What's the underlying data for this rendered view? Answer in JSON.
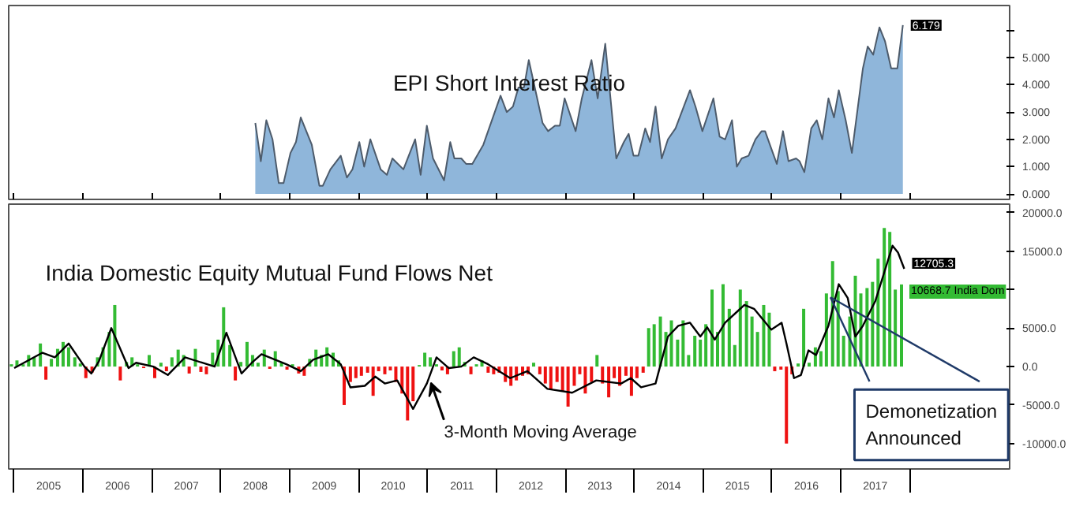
{
  "chart_data": [
    {
      "type": "area",
      "title": "EPI Short Interest Ratio",
      "xlim": [
        2004.92,
        2019.45
      ],
      "ylim": [
        -0.2,
        6.9
      ],
      "xticks": [
        {
          "value": 2005,
          "label": null
        },
        {
          "value": 2006,
          "label": null
        },
        {
          "value": 2007,
          "label": null
        },
        {
          "value": 2008,
          "label": null
        },
        {
          "value": 2009,
          "label": null
        },
        {
          "value": 2010,
          "label": null
        },
        {
          "value": 2011,
          "label": null
        },
        {
          "value": 2012,
          "label": null
        },
        {
          "value": 2013,
          "label": null
        },
        {
          "value": 2014,
          "label": null
        },
        {
          "value": 2015,
          "label": null
        },
        {
          "value": 2016,
          "label": null
        },
        {
          "value": 2017,
          "label": null
        },
        {
          "value": 2018,
          "label": null
        }
      ],
      "yticks": [
        {
          "value": 0,
          "label": "0.000"
        },
        {
          "value": 1,
          "label": "1.000"
        },
        {
          "value": 2,
          "label": "2.000"
        },
        {
          "value": 3,
          "label": "3.000"
        },
        {
          "value": 4,
          "label": "4.000"
        },
        {
          "value": 5,
          "label": "5.000"
        },
        {
          "value": 6,
          "label": null
        }
      ],
      "tick_labels": "y",
      "series": [
        {
          "color": "#8fb6da",
          "x": [
            2008.5,
            2008.58,
            2008.66,
            2008.75,
            2008.84,
            2008.91,
            2009.01,
            2009.09,
            2009.16,
            2009.32,
            2009.43,
            2009.48,
            2009.59,
            2009.74,
            2009.83,
            2009.91,
            2010.01,
            2010.08,
            2010.17,
            2010.32,
            2010.41,
            2010.49,
            2010.65,
            2010.82,
            2010.9,
            2010.99,
            2011.08,
            2011.24,
            2011.33,
            2011.39,
            2011.49,
            2011.56,
            2011.65,
            2011.81,
            2012.06,
            2012.15,
            2012.24,
            2012.32,
            2012.4,
            2012.47,
            2012.67,
            2012.75,
            2012.85,
            2012.92,
            2012.99,
            2013.15,
            2013.24,
            2013.38,
            2013.47,
            2013.58,
            2013.74,
            2013.85,
            2013.92,
            2013.99,
            2014.06,
            2014.16,
            2014.23,
            2014.31,
            2014.4,
            2014.49,
            2014.6,
            2014.81,
            2014.89,
            2014.99,
            2015.15,
            2015.24,
            2015.32,
            2015.42,
            2015.49,
            2015.56,
            2015.66,
            2015.76,
            2015.85,
            2015.9,
            2015.97,
            2016.07,
            2016.16,
            2016.24,
            2016.35,
            2016.4,
            2016.47,
            2016.57,
            2016.65,
            2016.73,
            2016.82,
            2016.9,
            2016.97,
            2017.07,
            2017.16,
            2017.32,
            2017.39,
            2017.47,
            2017.56,
            2017.64,
            2017.73,
            2017.82,
            2017.9
          ],
          "values": [
            2.6,
            1.2,
            2.7,
            2.0,
            0.4,
            0.4,
            1.5,
            1.9,
            2.8,
            1.8,
            0.3,
            0.3,
            0.9,
            1.4,
            0.6,
            0.9,
            1.9,
            1.0,
            2.0,
            0.9,
            0.7,
            1.3,
            0.9,
            2.0,
            0.7,
            2.5,
            1.3,
            0.5,
            1.9,
            1.3,
            1.3,
            1.1,
            1.1,
            1.8,
            3.6,
            3.0,
            3.2,
            3.9,
            3.9,
            4.9,
            2.6,
            2.3,
            2.5,
            2.5,
            3.5,
            2.3,
            3.5,
            4.9,
            3.5,
            5.5,
            1.3,
            1.9,
            2.2,
            1.4,
            1.4,
            2.4,
            1.9,
            3.2,
            1.3,
            2.0,
            2.4,
            3.8,
            3.2,
            2.3,
            3.5,
            2.1,
            2.0,
            2.7,
            1.0,
            1.3,
            1.4,
            2.0,
            2.3,
            2.3,
            1.8,
            1.1,
            2.3,
            1.2,
            1.3,
            1.2,
            0.8,
            2.4,
            2.7,
            2.0,
            3.5,
            2.8,
            3.8,
            2.7,
            1.5,
            4.6,
            5.4,
            5.1,
            6.1,
            5.6,
            4.6,
            4.6,
            6.179
          ],
          "value_labels": [
            null,
            null,
            null,
            null,
            null,
            null,
            null,
            null,
            null,
            null,
            null,
            null,
            null,
            null,
            null,
            null,
            null,
            null,
            null,
            null,
            null,
            null,
            null,
            null,
            null,
            null,
            null,
            null,
            null,
            null,
            null,
            null,
            null,
            null,
            null,
            null,
            null,
            null,
            null,
            null,
            null,
            null,
            null,
            null,
            null,
            null,
            null,
            null,
            null,
            null,
            null,
            null,
            null,
            null,
            null,
            null,
            null,
            null,
            null,
            null,
            null,
            null,
            null,
            null,
            null,
            null,
            null,
            null,
            null,
            null,
            null,
            null,
            null,
            null,
            null,
            null,
            null,
            null,
            null,
            null,
            null,
            null,
            null,
            null,
            null,
            null,
            null,
            null,
            null,
            null,
            null,
            null,
            null,
            null,
            null,
            null,
            "6.179"
          ]
        }
      ]
    },
    {
      "type": "bar",
      "title": "India Domestic Equity Mutual Fund Flows Net",
      "xlim": [
        2004.92,
        2019.45
      ],
      "ylim": [
        -13300,
        21100
      ],
      "yticks": [
        {
          "value": -10000,
          "label": "-10000.0"
        },
        {
          "value": -5000,
          "label": "-5000.0"
        },
        {
          "value": 0,
          "label": "0.0"
        },
        {
          "value": 5000,
          "label": "5000.0"
        },
        {
          "value": 10000,
          "label": null
        },
        {
          "value": 15000,
          "label": "15000.0"
        },
        {
          "value": 20000,
          "label": "20000.0"
        }
      ],
      "xticks": [
        {
          "value": 2005,
          "label": null
        },
        {
          "value": 2005.5,
          "label": "2005"
        },
        {
          "value": 2006,
          "label": null
        },
        {
          "value": 2006.5,
          "label": "2006"
        },
        {
          "value": 2007,
          "label": null
        },
        {
          "value": 2007.5,
          "label": "2007"
        },
        {
          "value": 2008,
          "label": null
        },
        {
          "value": 2008.5,
          "label": "2008"
        },
        {
          "value": 2009,
          "label": null
        },
        {
          "value": 2009.5,
          "label": "2009"
        },
        {
          "value": 2010,
          "label": null
        },
        {
          "value": 2010.5,
          "label": "2010"
        },
        {
          "value": 2011,
          "label": null
        },
        {
          "value": 2011.5,
          "label": "2011"
        },
        {
          "value": 2012,
          "label": null
        },
        {
          "value": 2012.5,
          "label": "2012"
        },
        {
          "value": 2013,
          "label": null
        },
        {
          "value": 2013.5,
          "label": "2013"
        },
        {
          "value": 2014,
          "label": null
        },
        {
          "value": 2014.5,
          "label": "2014"
        },
        {
          "value": 2015,
          "label": null
        },
        {
          "value": 2015.5,
          "label": "2015"
        },
        {
          "value": 2016,
          "label": null
        },
        {
          "value": 2016.5,
          "label": "2016"
        },
        {
          "value": 2017,
          "label": null
        },
        {
          "value": 2017.5,
          "label": "2017"
        },
        {
          "value": 2018,
          "label": null
        }
      ],
      "annotations": [
        {
          "text": "3-Month Moving Average",
          "x": 2011.05,
          "y": -2100
        },
        {
          "text": "Demonetization Announced",
          "x": 2016.85,
          "y": 9000
        }
      ],
      "series": [
        {
          "type": "bar",
          "name": "India Dom",
          "x": [
            2004.96,
            2005.04,
            2005.13,
            2005.21,
            2005.29,
            2005.38,
            2005.46,
            2005.54,
            2005.63,
            2005.71,
            2005.79,
            2005.88,
            2005.96,
            2006.04,
            2006.13,
            2006.21,
            2006.29,
            2006.38,
            2006.46,
            2006.54,
            2006.63,
            2006.71,
            2006.79,
            2006.88,
            2006.96,
            2007.04,
            2007.13,
            2007.21,
            2007.29,
            2007.38,
            2007.46,
            2007.54,
            2007.63,
            2007.71,
            2007.79,
            2007.88,
            2007.96,
            2008.04,
            2008.13,
            2008.21,
            2008.29,
            2008.38,
            2008.46,
            2008.54,
            2008.63,
            2008.71,
            2008.79,
            2008.88,
            2008.96,
            2009.04,
            2009.13,
            2009.21,
            2009.29,
            2009.38,
            2009.46,
            2009.54,
            2009.63,
            2009.71,
            2009.79,
            2009.88,
            2009.96,
            2010.04,
            2010.13,
            2010.21,
            2010.29,
            2010.38,
            2010.46,
            2010.54,
            2010.63,
            2010.71,
            2010.79,
            2010.88,
            2010.96,
            2011.04,
            2011.13,
            2011.21,
            2011.29,
            2011.38,
            2011.46,
            2011.54,
            2011.63,
            2011.71,
            2011.79,
            2011.88,
            2011.96,
            2012.04,
            2012.13,
            2012.21,
            2012.29,
            2012.38,
            2012.46,
            2012.54,
            2012.63,
            2012.71,
            2012.79,
            2012.88,
            2012.96,
            2013.04,
            2013.13,
            2013.21,
            2013.29,
            2013.38,
            2013.46,
            2013.54,
            2013.63,
            2013.71,
            2013.79,
            2013.88,
            2013.96,
            2014.04,
            2014.13,
            2014.21,
            2014.29,
            2014.38,
            2014.46,
            2014.54,
            2014.63,
            2014.71,
            2014.79,
            2014.88,
            2014.96,
            2015.04,
            2015.13,
            2015.21,
            2015.29,
            2015.38,
            2015.46,
            2015.54,
            2015.63,
            2015.71,
            2015.79,
            2015.88,
            2015.96,
            2016.04,
            2016.13,
            2016.21,
            2016.29,
            2016.38,
            2016.46,
            2016.54,
            2016.63,
            2016.71,
            2016.79,
            2016.88,
            2016.96,
            2017.04,
            2017.13,
            2017.21,
            2017.29,
            2017.38,
            2017.46,
            2017.54,
            2017.63,
            2017.71,
            2017.79,
            2017.88
          ],
          "values": [
            300,
            800,
            300,
            1500,
            1200,
            3000,
            -1700,
            1000,
            2300,
            3200,
            2500,
            1200,
            400,
            -1500,
            -800,
            1200,
            2500,
            4500,
            8000,
            -1800,
            600,
            1200,
            300,
            -200,
            1500,
            -1500,
            500,
            -600,
            1200,
            2200,
            1500,
            -900,
            2300,
            -700,
            -1000,
            1800,
            3500,
            7700,
            2800,
            -1800,
            600,
            3200,
            1500,
            500,
            2200,
            -300,
            2000,
            500,
            -400,
            300,
            -900,
            -1200,
            1000,
            2200,
            1500,
            2500,
            1800,
            800,
            -5000,
            -2000,
            -1500,
            -1200,
            -800,
            -3800,
            -600,
            -1000,
            -500,
            -2000,
            -3500,
            -7000,
            -4500,
            200,
            1800,
            1200,
            300,
            -500,
            -1000,
            2000,
            2500,
            600,
            -1000,
            300,
            800,
            -800,
            -1000,
            -800,
            -2000,
            -2500,
            -1800,
            -1200,
            -1000,
            500,
            -1000,
            -2200,
            -3000,
            -2000,
            -3200,
            -5200,
            -2500,
            -1000,
            -3500,
            -2000,
            1500,
            -2200,
            -4000,
            -1500,
            -2500,
            -1200,
            -3800,
            -1500,
            -800,
            5000,
            5500,
            6500,
            4500,
            6000,
            3500,
            6000,
            1500,
            4000,
            3500,
            5500,
            10000,
            4500,
            10700,
            7500,
            2800,
            10000,
            8500,
            6500,
            4500,
            8000,
            7000,
            -600,
            -400,
            -10000,
            -1000,
            400,
            7500,
            500,
            2500,
            2000,
            9500,
            13700,
            9800,
            4000,
            6500,
            11800,
            9500,
            10200,
            11000,
            14000,
            18000,
            17500,
            10000,
            10668.7
          ],
          "colors": [
            "#33bb33",
            "#33bb33",
            "#33bb33",
            "#33bb33",
            "#33bb33",
            "#33bb33",
            "#ee1111",
            "#33bb33",
            "#33bb33",
            "#33bb33",
            "#33bb33",
            "#33bb33",
            "#33bb33",
            "#ee1111",
            "#ee1111",
            "#33bb33",
            "#33bb33",
            "#33bb33",
            "#33bb33",
            "#ee1111",
            "#33bb33",
            "#33bb33",
            "#33bb33",
            "#ee1111",
            "#33bb33",
            "#ee1111",
            "#33bb33",
            "#ee1111",
            "#33bb33",
            "#33bb33",
            "#33bb33",
            "#ee1111",
            "#33bb33",
            "#ee1111",
            "#ee1111",
            "#33bb33",
            "#33bb33",
            "#33bb33",
            "#33bb33",
            "#ee1111",
            "#33bb33",
            "#33bb33",
            "#33bb33",
            "#33bb33",
            "#33bb33",
            "#ee1111",
            "#33bb33",
            "#33bb33",
            "#ee1111",
            "#33bb33",
            "#ee1111",
            "#ee1111",
            "#33bb33",
            "#33bb33",
            "#33bb33",
            "#33bb33",
            "#33bb33",
            "#33bb33",
            "#ee1111",
            "#ee1111",
            "#ee1111",
            "#ee1111",
            "#ee1111",
            "#ee1111",
            "#ee1111",
            "#ee1111",
            "#ee1111",
            "#ee1111",
            "#ee1111",
            "#ee1111",
            "#ee1111",
            "#33bb33",
            "#33bb33",
            "#33bb33",
            "#33bb33",
            "#ee1111",
            "#ee1111",
            "#33bb33",
            "#33bb33",
            "#33bb33",
            "#ee1111",
            "#33bb33",
            "#33bb33",
            "#ee1111",
            "#ee1111",
            "#ee1111",
            "#ee1111",
            "#ee1111",
            "#ee1111",
            "#ee1111",
            "#ee1111",
            "#33bb33",
            "#ee1111",
            "#ee1111",
            "#ee1111",
            "#ee1111",
            "#ee1111",
            "#ee1111",
            "#ee1111",
            "#ee1111",
            "#ee1111",
            "#ee1111",
            "#33bb33",
            "#ee1111",
            "#ee1111",
            "#ee1111",
            "#ee1111",
            "#ee1111",
            "#ee1111",
            "#ee1111",
            "#ee1111",
            "#33bb33",
            "#33bb33",
            "#33bb33",
            "#33bb33",
            "#33bb33",
            "#33bb33",
            "#33bb33",
            "#33bb33",
            "#33bb33",
            "#33bb33",
            "#33bb33",
            "#33bb33",
            "#33bb33",
            "#33bb33",
            "#33bb33",
            "#33bb33",
            "#33bb33",
            "#33bb33",
            "#33bb33",
            "#33bb33",
            "#33bb33",
            "#33bb33",
            "#ee1111",
            "#ee1111",
            "#ee1111",
            "#ee1111",
            "#33bb33",
            "#33bb33",
            "#33bb33",
            "#33bb33",
            "#33bb33",
            "#33bb33",
            "#33bb33",
            "#33bb33",
            "#33bb33",
            "#33bb33",
            "#33bb33",
            "#33bb33",
            "#33bb33",
            "#33bb33",
            "#33bb33",
            "#33bb33",
            "#33bb33",
            "#33bb33",
            "#33bb33"
          ],
          "value_labels": [
            null,
            null,
            null,
            null,
            null,
            null,
            null,
            null,
            null,
            null,
            null,
            null,
            null,
            null,
            null,
            null,
            null,
            null,
            null,
            null,
            null,
            null,
            null,
            null,
            null,
            null,
            null,
            null,
            null,
            null,
            null,
            null,
            null,
            null,
            null,
            null,
            null,
            null,
            null,
            null,
            null,
            null,
            null,
            null,
            null,
            null,
            null,
            null,
            null,
            null,
            null,
            null,
            null,
            null,
            null,
            null,
            null,
            null,
            null,
            null,
            null,
            null,
            null,
            null,
            null,
            null,
            null,
            null,
            null,
            null,
            null,
            null,
            null,
            null,
            null,
            null,
            null,
            null,
            null,
            null,
            null,
            null,
            null,
            null,
            null,
            null,
            null,
            null,
            null,
            null,
            null,
            null,
            null,
            null,
            null,
            null,
            null,
            null,
            null,
            null,
            null,
            null,
            null,
            null,
            null,
            null,
            null,
            null,
            null,
            null,
            null,
            null,
            null,
            null,
            null,
            null,
            null,
            null,
            null,
            null,
            null,
            null,
            null,
            null,
            null,
            null,
            null,
            null,
            null,
            null,
            null,
            null,
            null,
            null,
            null,
            null,
            null,
            null,
            null,
            null,
            null,
            null,
            null,
            null,
            null,
            null,
            null,
            null,
            null,
            null,
            null,
            null,
            null,
            null,
            null,
            "10668.7"
          ]
        },
        {
          "type": "line",
          "color": "#000000",
          "x": [
            2005.0,
            2005.41,
            2005.59,
            2005.79,
            2006.02,
            2006.12,
            2006.23,
            2006.41,
            2006.66,
            2006.77,
            2007.02,
            2007.23,
            2007.48,
            2007.73,
            2007.91,
            2008.08,
            2008.3,
            2008.45,
            2008.59,
            2008.95,
            2009.16,
            2009.34,
            2009.56,
            2009.74,
            2009.88,
            2010.09,
            2010.24,
            2010.38,
            2010.56,
            2010.79,
            2010.99,
            2011.13,
            2011.31,
            2011.49,
            2011.67,
            2011.88,
            2012.2,
            2012.45,
            2012.74,
            2013.1,
            2013.45,
            2013.81,
            2013.95,
            2014.1,
            2014.31,
            2014.49,
            2014.64,
            2014.81,
            2014.96,
            2015.06,
            2015.17,
            2015.32,
            2015.49,
            2015.6,
            2015.74,
            2015.99,
            2016.14,
            2016.21,
            2016.32,
            2016.42,
            2016.53,
            2016.64,
            2016.82,
            2016.97,
            2017.1,
            2017.21,
            2017.32,
            2017.5,
            2017.75,
            2017.83,
            2017.92
          ],
          "values": [
            -200,
            1800,
            1200,
            3000,
            0,
            -900,
            700,
            5000,
            -200,
            500,
            0,
            -1100,
            1200,
            500,
            0,
            4400,
            -900,
            500,
            1600,
            300,
            -600,
            900,
            1600,
            300,
            -2700,
            -2500,
            -1300,
            -2200,
            -1800,
            -5500,
            -2200,
            1200,
            -200,
            0,
            1200,
            300,
            -1500,
            -600,
            -2900,
            -3400,
            -1800,
            -2200,
            -1500,
            -2700,
            -2200,
            3900,
            5300,
            5700,
            3900,
            5100,
            3500,
            5700,
            7100,
            8000,
            7500,
            4800,
            5700,
            3000,
            -1500,
            -1100,
            2100,
            1500,
            5300,
            10700,
            8900,
            3900,
            5300,
            8500,
            15700,
            14800,
            12705.3
          ],
          "value_labels": [
            null,
            null,
            null,
            null,
            null,
            null,
            null,
            null,
            null,
            null,
            null,
            null,
            null,
            null,
            null,
            null,
            null,
            null,
            null,
            null,
            null,
            null,
            null,
            null,
            null,
            null,
            null,
            null,
            null,
            null,
            null,
            null,
            null,
            null,
            null,
            null,
            null,
            null,
            null,
            null,
            null,
            null,
            null,
            null,
            null,
            null,
            null,
            null,
            null,
            null,
            null,
            null,
            null,
            null,
            null,
            null,
            null,
            null,
            null,
            null,
            null,
            null,
            null,
            null,
            null,
            null,
            null,
            null,
            null,
            null,
            "12705.3"
          ]
        }
      ]
    }
  ]
}
